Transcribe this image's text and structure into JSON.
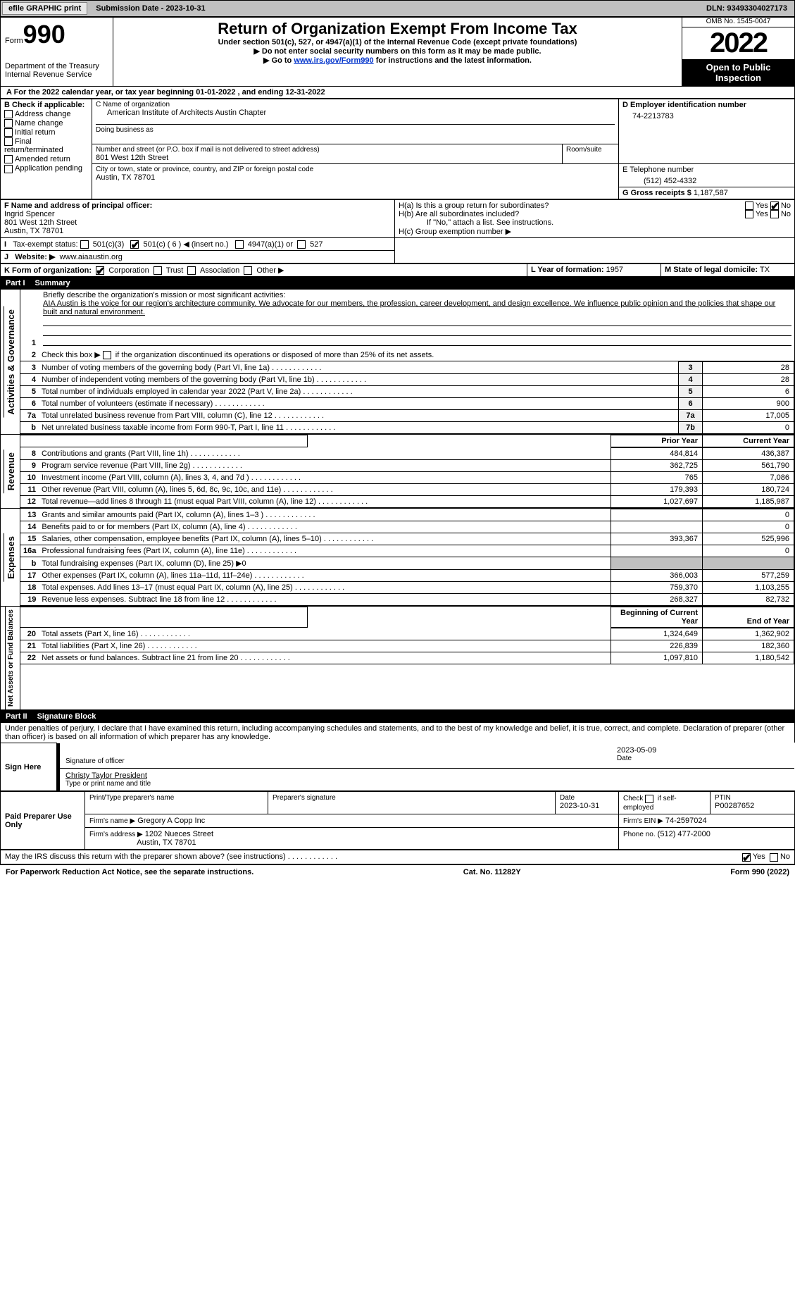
{
  "top": {
    "efile": "efile GRAPHIC print",
    "submission_date": "Submission Date - 2023-10-31",
    "dln": "DLN: 93493304027173"
  },
  "header": {
    "form_word": "Form",
    "form_no": "990",
    "dept": "Department of the Treasury",
    "irs": "Internal Revenue Service",
    "title": "Return of Organization Exempt From Income Tax",
    "subtitle": "Under section 501(c), 527, or 4947(a)(1) of the Internal Revenue Code (except private foundations)",
    "instr1": "▶ Do not enter social security numbers on this form as it may be made public.",
    "instr2_pre": "▶ Go to ",
    "instr2_link": "www.irs.gov/Form990",
    "instr2_post": " for instructions and the latest information.",
    "omb": "OMB No. 1545-0047",
    "year": "2022",
    "open": "Open to Public Inspection"
  },
  "A": {
    "text": "A For the 2022 calendar year, or tax year beginning 01-01-2022     , and ending 12-31-2022"
  },
  "B": {
    "hdr": "B Check if applicable:",
    "items": [
      "Address change",
      "Name change",
      "Initial return",
      "Final return/terminated",
      "Amended return",
      "Application pending"
    ]
  },
  "C": {
    "name_lbl": "C Name of organization",
    "name": "American Institute of Architects Austin Chapter",
    "dba_lbl": "Doing business as",
    "street_lbl": "Number and street (or P.O. box if mail is not delivered to street address)",
    "room_lbl": "Room/suite",
    "street": "801 West 12th Street",
    "city_lbl": "City or town, state or province, country, and ZIP or foreign postal code",
    "city": "Austin, TX  78701"
  },
  "D": {
    "lbl": "D Employer identification number",
    "val": "74-2213783"
  },
  "E": {
    "lbl": "E Telephone number",
    "val": "(512) 452-4332"
  },
  "G": {
    "lbl": "G Gross receipts $",
    "val": "1,187,587"
  },
  "F": {
    "lbl": "F  Name and address of principal officer:",
    "name": "Ingrid Spencer",
    "addr1": "801 West 12th Street",
    "addr2": "Austin, TX  78701"
  },
  "H": {
    "a": "H(a)  Is this a group return for subordinates?",
    "b": "H(b)  Are all subordinates included?",
    "b_note": "If \"No,\" attach a list. See instructions.",
    "c": "H(c)  Group exemption number ▶",
    "yes": "Yes",
    "no": "No"
  },
  "I": {
    "lbl": "Tax-exempt status:",
    "opts": [
      "501(c)(3)",
      "501(c) ( 6 ) ◀ (insert no.)",
      "4947(a)(1) or",
      "527"
    ]
  },
  "J": {
    "lbl": "Website: ▶",
    "val": "www.aiaaustin.org"
  },
  "K": {
    "lbl": "K Form of organization:",
    "opts": [
      "Corporation",
      "Trust",
      "Association",
      "Other ▶"
    ]
  },
  "L": {
    "lbl": "L Year of formation:",
    "val": "1957"
  },
  "M": {
    "lbl": "M State of legal domicile:",
    "val": "TX"
  },
  "part1": {
    "num": "Part I",
    "title": "Summary"
  },
  "summary": {
    "l1_lbl": "Briefly describe the organization's mission or most significant activities:",
    "l1_text": "AIA Austin is the voice for our region's architecture community. We advocate for our members, the profession, career development, and design excellence. We influence public opinion and the policies that shape our built and natural environment.",
    "l2": "Check this box ▶        if the organization discontinued its operations or disposed of more than 25% of its net assets.",
    "rows_ag": [
      {
        "n": "3",
        "d": "Number of voting members of the governing body (Part VI, line 1a)",
        "box": "3",
        "v": "28"
      },
      {
        "n": "4",
        "d": "Number of independent voting members of the governing body (Part VI, line 1b)",
        "box": "4",
        "v": "28"
      },
      {
        "n": "5",
        "d": "Total number of individuals employed in calendar year 2022 (Part V, line 2a)",
        "box": "5",
        "v": "6"
      },
      {
        "n": "6",
        "d": "Total number of volunteers (estimate if necessary)",
        "box": "6",
        "v": "900"
      },
      {
        "n": "7a",
        "d": "Total unrelated business revenue from Part VIII, column (C), line 12",
        "box": "7a",
        "v": "17,005"
      },
      {
        "n": "b",
        "d": "Net unrelated business taxable income from Form 990-T, Part I, line 11",
        "box": "7b",
        "v": "0"
      }
    ],
    "col_prior": "Prior Year",
    "col_current": "Current Year",
    "rows_rev": [
      {
        "n": "8",
        "d": "Contributions and grants (Part VIII, line 1h)",
        "p": "484,814",
        "c": "436,387"
      },
      {
        "n": "9",
        "d": "Program service revenue (Part VIII, line 2g)",
        "p": "362,725",
        "c": "561,790"
      },
      {
        "n": "10",
        "d": "Investment income (Part VIII, column (A), lines 3, 4, and 7d )",
        "p": "765",
        "c": "7,086"
      },
      {
        "n": "11",
        "d": "Other revenue (Part VIII, column (A), lines 5, 6d, 8c, 9c, 10c, and 11e)",
        "p": "179,393",
        "c": "180,724"
      },
      {
        "n": "12",
        "d": "Total revenue—add lines 8 through 11 (must equal Part VIII, column (A), line 12)",
        "p": "1,027,697",
        "c": "1,185,987"
      }
    ],
    "rows_exp": [
      {
        "n": "13",
        "d": "Grants and similar amounts paid (Part IX, column (A), lines 1–3 )",
        "p": "",
        "c": "0"
      },
      {
        "n": "14",
        "d": "Benefits paid to or for members (Part IX, column (A), line 4)",
        "p": "",
        "c": "0"
      },
      {
        "n": "15",
        "d": "Salaries, other compensation, employee benefits (Part IX, column (A), lines 5–10)",
        "p": "393,367",
        "c": "525,996"
      },
      {
        "n": "16a",
        "d": "Professional fundraising fees (Part IX, column (A), line 11e)",
        "p": "",
        "c": "0"
      },
      {
        "n": "b",
        "d": "Total fundraising expenses (Part IX, column (D), line 25) ▶0",
        "p": "shaded",
        "c": "shaded"
      },
      {
        "n": "17",
        "d": "Other expenses (Part IX, column (A), lines 11a–11d, 11f–24e)",
        "p": "366,003",
        "c": "577,259"
      },
      {
        "n": "18",
        "d": "Total expenses. Add lines 13–17 (must equal Part IX, column (A), line 25)",
        "p": "759,370",
        "c": "1,103,255"
      },
      {
        "n": "19",
        "d": "Revenue less expenses. Subtract line 18 from line 12",
        "p": "268,327",
        "c": "82,732"
      }
    ],
    "col_begin": "Beginning of Current Year",
    "col_end": "End of Year",
    "rows_net": [
      {
        "n": "20",
        "d": "Total assets (Part X, line 16)",
        "p": "1,324,649",
        "c": "1,362,902"
      },
      {
        "n": "21",
        "d": "Total liabilities (Part X, line 26)",
        "p": "226,839",
        "c": "182,360"
      },
      {
        "n": "22",
        "d": "Net assets or fund balances. Subtract line 21 from line 20",
        "p": "1,097,810",
        "c": "1,180,542"
      }
    ],
    "side_ag": "Activities & Governance",
    "side_rev": "Revenue",
    "side_exp": "Expenses",
    "side_net": "Net Assets or Fund Balances"
  },
  "part2": {
    "num": "Part II",
    "title": "Signature Block"
  },
  "sig": {
    "perjury": "Under penalties of perjury, I declare that I have examined this return, including accompanying schedules and statements, and to the best of my knowledge and belief, it is true, correct, and complete. Declaration of preparer (other than officer) is based on all information of which preparer has any knowledge.",
    "sign_here": "Sign Here",
    "sig_officer": "Signature of officer",
    "date_val": "2023-05-09",
    "date_lbl": "Date",
    "name_title": "Christy Taylor President",
    "name_title_lbl": "Type or print name and title",
    "paid": "Paid Preparer Use Only",
    "prep_name_lbl": "Print/Type preparer's name",
    "prep_sig_lbl": "Preparer's signature",
    "prep_date_lbl": "Date",
    "prep_date": "2023-10-31",
    "self_emp": "Check         if self-employed",
    "ptin_lbl": "PTIN",
    "ptin": "P00287652",
    "firm_name_lbl": "Firm's name     ▶",
    "firm_name": "Gregory A Copp Inc",
    "firm_ein_lbl": "Firm's EIN ▶",
    "firm_ein": "74-2597024",
    "firm_addr_lbl": "Firm's address ▶",
    "firm_addr1": "1202 Nueces Street",
    "firm_addr2": "Austin, TX  78701",
    "phone_lbl": "Phone no.",
    "phone": "(512) 477-2000",
    "discuss": "May the IRS discuss this return with the preparer shown above? (see instructions)",
    "yes": "Yes",
    "no": "No"
  },
  "footer": {
    "pra": "For Paperwork Reduction Act Notice, see the separate instructions.",
    "cat": "Cat. No. 11282Y",
    "form": "Form 990 (2022)"
  },
  "colors": {
    "top_bar_bg": "#c0c0c0",
    "black": "#000000",
    "link": "#0033cc",
    "shaded": "#c0c0c0"
  }
}
